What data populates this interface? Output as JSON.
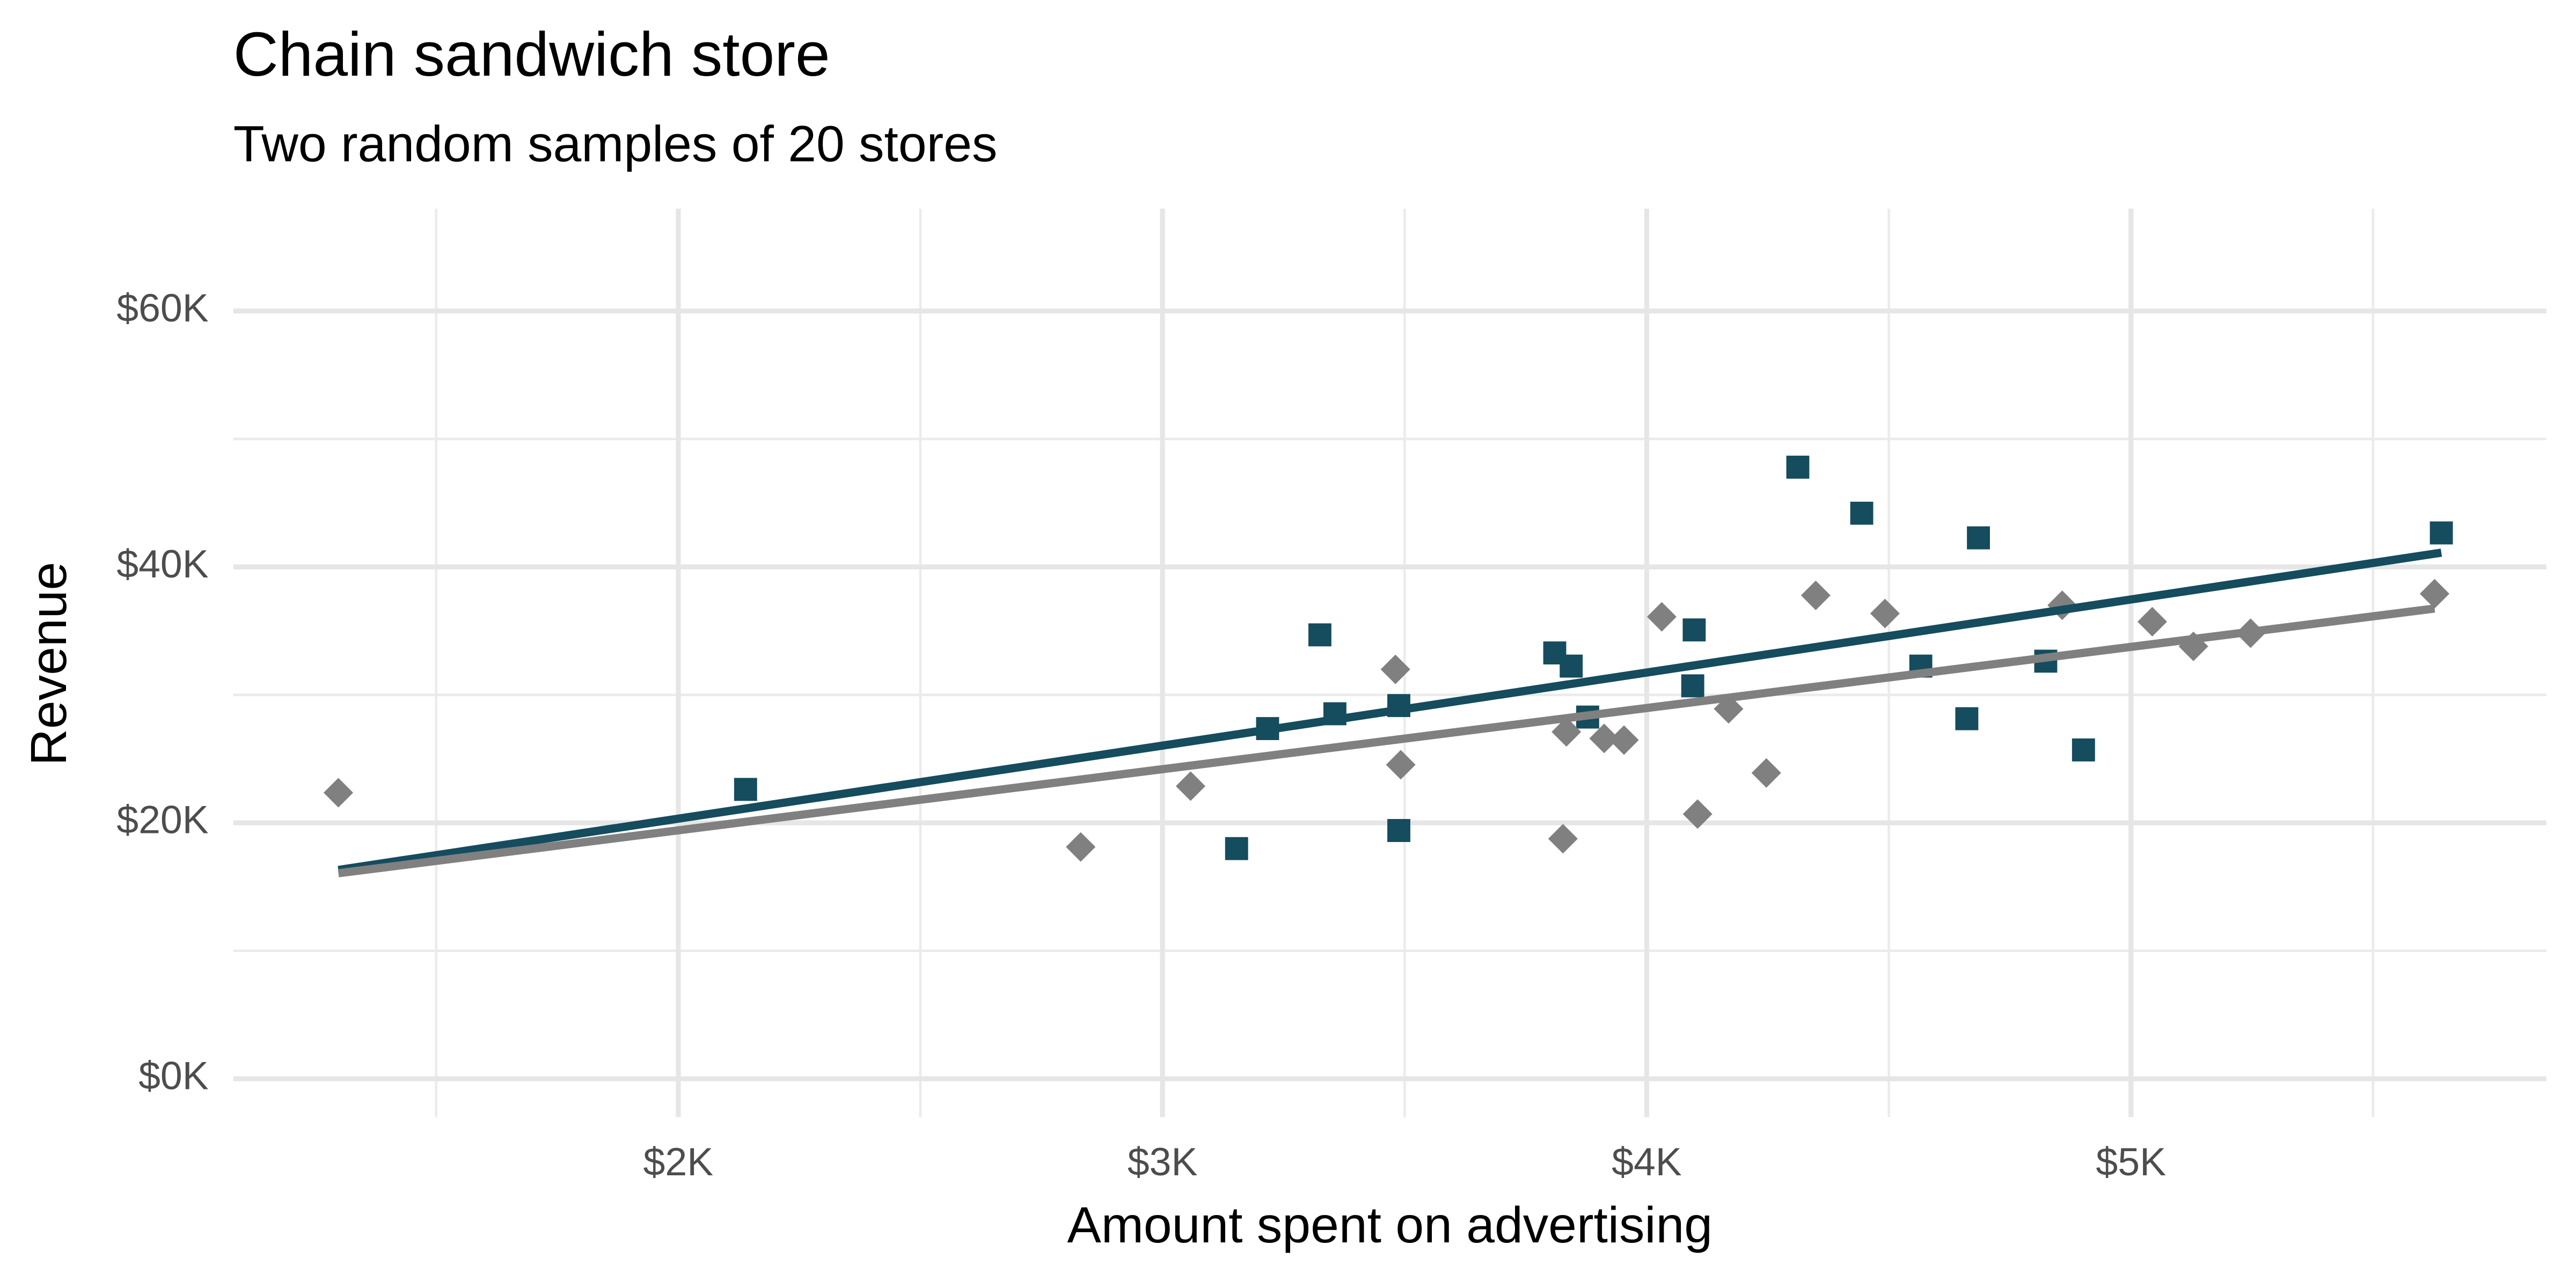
{
  "chart_data": {
    "type": "scatter",
    "title": "Chain sandwich store",
    "subtitle": "Two random samples of 20 stores",
    "x_label": "Amount spent on advertising",
    "y_label": "Revenue",
    "xlim": [
      1081,
      5858
    ],
    "ylim": [
      -3000,
      68000
    ],
    "xticks": [
      {
        "value": 2000,
        "label": "$2K"
      },
      {
        "value": 3000,
        "label": "$3K"
      },
      {
        "value": 4000,
        "label": "$4K"
      },
      {
        "value": 5000,
        "label": "$5K"
      }
    ],
    "yticks": [
      {
        "value": 0,
        "label": "$0K"
      },
      {
        "value": 20000,
        "label": "$20K"
      },
      {
        "value": 40000,
        "label": "$40K"
      },
      {
        "value": 60000,
        "label": "$60K"
      }
    ],
    "xminor": [
      1500,
      2500,
      3500,
      4500,
      5500
    ],
    "yminor": [
      10000,
      30000,
      50000
    ],
    "grid": true,
    "series": [
      {
        "color": "#154c5e",
        "marker": "square",
        "x": [
          2139,
          3153,
          3217,
          3325,
          3356,
          3488,
          3488,
          3810,
          3844,
          3878,
          4098,
          4095,
          4312,
          4444,
          4566,
          4661,
          4685,
          4824,
          4902,
          5641
        ],
        "y": [
          22613,
          17988,
          27367,
          34691,
          28524,
          19401,
          29166,
          33278,
          32250,
          28267,
          35077,
          30708,
          47796,
          44198,
          32250,
          28138,
          42272,
          32635,
          25697,
          42657
        ],
        "fit": {
          "x": [
            1298,
            5641
          ],
          "y": [
            16318,
            41116
          ]
        }
      },
      {
        "color": "#808080",
        "marker": "diamond",
        "x": [
          1298,
          2831,
          3058,
          3481,
          3492,
          3827,
          3834,
          3912,
          3953,
          4031,
          4105,
          4169,
          4247,
          4349,
          4492,
          4858,
          5044,
          5129,
          5247,
          5627
        ],
        "y": [
          22356,
          18116,
          22870,
          31993,
          24541,
          18759,
          27110,
          26596,
          26468,
          36104,
          20686,
          28909,
          23898,
          37775,
          36361,
          37004,
          35719,
          33792,
          34820,
          37904
        ],
        "fit": {
          "x": [
            1298,
            5627
          ],
          "y": [
            16061,
            36747
          ]
        }
      }
    ]
  }
}
